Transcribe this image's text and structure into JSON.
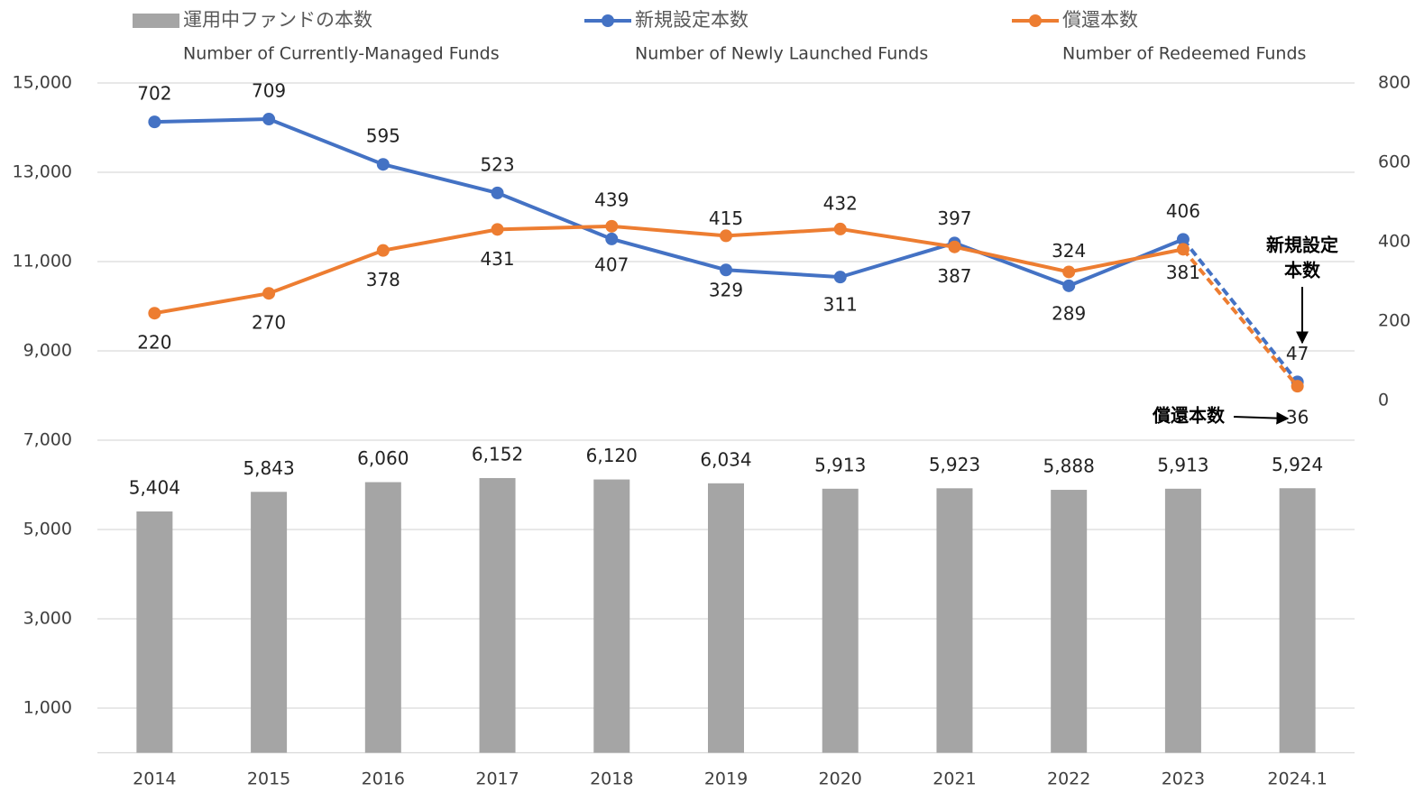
{
  "chart_data": {
    "type": "bar-line",
    "categories": [
      "2014",
      "2015",
      "2016",
      "2017",
      "2018",
      "2019",
      "2020",
      "2021",
      "2022",
      "2023",
      "2024.1"
    ],
    "series": [
      {
        "name": "運用中ファンドの本数",
        "subtitle": "Number of Currently-Managed Funds",
        "type": "bar",
        "color": "#a5a5a5",
        "axis": "y",
        "values": [
          5404,
          5843,
          6060,
          6152,
          6120,
          6034,
          5913,
          5923,
          5888,
          5913,
          5924
        ],
        "value_labels": [
          "5,404",
          "5,843",
          "6,060",
          "6,152",
          "6,120",
          "6,034",
          "5,913",
          "5,923",
          "5,888",
          "5,913",
          "5,924"
        ]
      },
      {
        "name": "新規設定本数",
        "subtitle": "Number of Newly Launched Funds",
        "type": "line",
        "color": "#4472c4",
        "axis": "y2",
        "dashed_last_segment": true,
        "values": [
          702,
          709,
          595,
          523,
          407,
          329,
          311,
          397,
          289,
          406,
          47
        ]
      },
      {
        "name": "償還本数",
        "subtitle": "Number of Redeemed Funds",
        "type": "line",
        "color": "#ed7d31",
        "axis": "y2",
        "dashed_last_segment": true,
        "values": [
          220,
          270,
          378,
          431,
          439,
          415,
          432,
          387,
          324,
          381,
          36
        ]
      }
    ],
    "ylim": [
      0,
      15000
    ],
    "yticks": [
      {
        "value": 1000,
        "label": "1,000"
      },
      {
        "value": 3000,
        "label": "3,000"
      },
      {
        "value": 5000,
        "label": "5,000"
      },
      {
        "value": 7000,
        "label": "7,000"
      },
      {
        "value": 9000,
        "label": "9,000"
      },
      {
        "value": 11000,
        "label": "11,000"
      },
      {
        "value": 13000,
        "label": "13,000"
      },
      {
        "value": 15000,
        "label": "15,000"
      }
    ],
    "y2lim": [
      -887.5,
      800
    ],
    "y2ticks": [
      0,
      200,
      400,
      600,
      800
    ],
    "grid": true,
    "annotations": [
      {
        "text": [
          "新規設定",
          "本数"
        ],
        "target": "新規設定本数"
      },
      {
        "text": [
          "償還本数"
        ],
        "target": "償還本数"
      }
    ]
  }
}
